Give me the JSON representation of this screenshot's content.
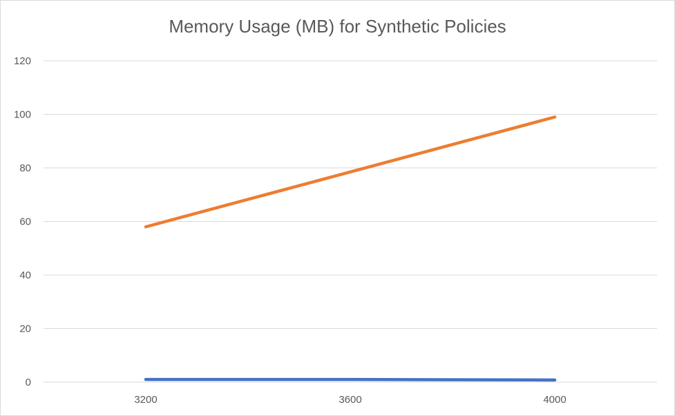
{
  "chart_data": {
    "type": "line",
    "title": "Memory Usage (MB) for Synthetic Policies",
    "xlabel": "",
    "ylabel": "",
    "categories": [
      "3200",
      "3600",
      "4000"
    ],
    "ylim": [
      0,
      120
    ],
    "yticks": [
      0,
      20,
      40,
      60,
      80,
      100,
      120
    ],
    "grid": true,
    "legend": "none",
    "series": [
      {
        "color": "#ED7D31",
        "values": [
          58,
          78.5,
          99
        ]
      },
      {
        "color": "#4472C4",
        "values": [
          1,
          1,
          0.8
        ]
      }
    ]
  }
}
